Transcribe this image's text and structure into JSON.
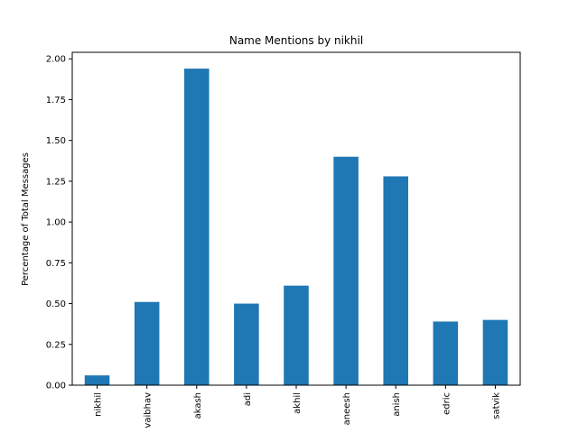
{
  "chart_data": {
    "type": "bar",
    "title": "Name Mentions by nikhil",
    "xlabel": "",
    "ylabel": "Percentage of Total Messages",
    "categories": [
      "nikhil",
      "vaibhav",
      "akash",
      "adi",
      "akhil",
      "aneesh",
      "anish",
      "edric",
      "satvik"
    ],
    "values": [
      0.06,
      0.51,
      1.94,
      0.5,
      0.61,
      1.4,
      1.28,
      0.39,
      0.4
    ],
    "ylim": [
      0,
      2.04
    ],
    "yticks": [
      "0.00",
      "0.25",
      "0.50",
      "0.75",
      "1.00",
      "1.25",
      "1.50",
      "1.75",
      "2.00"
    ],
    "grid": false,
    "legend": "none",
    "bar_color": "#1f77b4"
  }
}
